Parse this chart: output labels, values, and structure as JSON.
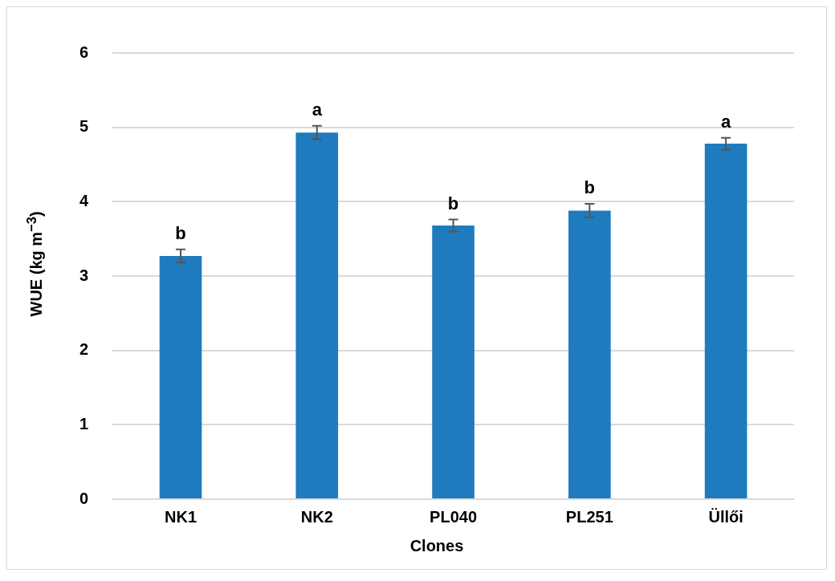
{
  "chart_data": {
    "type": "bar",
    "xlabel": "Clones",
    "ylabel": "WUE (kg m$^{−3}$)",
    "categories": [
      "NK1",
      "NK2",
      "PL040",
      "PL251",
      "Üllői"
    ],
    "values": [
      3.27,
      4.93,
      3.68,
      3.88,
      4.78
    ],
    "errors": [
      0.09,
      0.09,
      0.08,
      0.09,
      0.08
    ],
    "color": "#1f7bbd",
    "ylim": [
      0,
      6
    ],
    "yticks": [
      0,
      1,
      2,
      3,
      4,
      5,
      6
    ],
    "grid": "y",
    "legend": false,
    "annotations": [
      {
        "text": "b",
        "x": "NK1",
        "y": 3.36
      },
      {
        "text": "a",
        "x": "NK2",
        "y": 5.02
      },
      {
        "text": "b",
        "x": "PL040",
        "y": 3.76
      },
      {
        "text": "b",
        "x": "PL251",
        "y": 3.97
      },
      {
        "text": "a",
        "x": "Üllői",
        "y": 4.86
      }
    ]
  }
}
